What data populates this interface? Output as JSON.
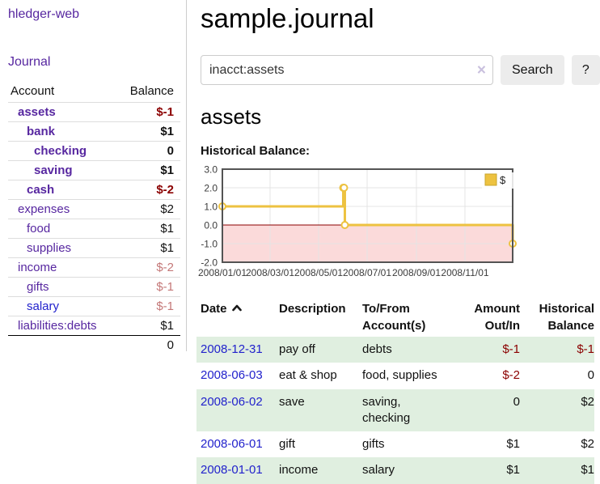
{
  "colors": {
    "link_purple": "#5727a0",
    "link_blue": "#2222cc",
    "negative": "#8b0000",
    "negative_muted": "#c47878",
    "row_highlight_green": "#e0efe0",
    "chart_line_yellow": "#edc240",
    "chart_negative_fill": "#fbdada",
    "chart_zero_line": "#8b0000",
    "chart_border": "#545454",
    "button_bg": "#ececec"
  },
  "app": {
    "brand": "hledger-web"
  },
  "sidebar": {
    "journal_link": "Journal",
    "accounts_table": {
      "headers": {
        "account": "Account",
        "balance": "Balance"
      },
      "rows": [
        {
          "account": "assets",
          "balance": "$-1"
        },
        {
          "account": "bank",
          "balance": "$1"
        },
        {
          "account": "checking",
          "balance": "0"
        },
        {
          "account": "saving",
          "balance": "$1"
        },
        {
          "account": "cash",
          "balance": "$-2"
        },
        {
          "account": "expenses",
          "balance": "$2"
        },
        {
          "account": "food",
          "balance": "$1"
        },
        {
          "account": "supplies",
          "balance": "$1"
        },
        {
          "account": "income",
          "balance": "$-2"
        },
        {
          "account": "gifts",
          "balance": "$-1"
        },
        {
          "account": "salary",
          "balance": "$-1"
        },
        {
          "account": "liabilities:debts",
          "balance": "$1"
        }
      ],
      "total": "0"
    }
  },
  "main": {
    "title": "sample.journal",
    "search": {
      "value": "inacct:assets",
      "clear_icon": "×",
      "button_label": "Search",
      "help_label": "?"
    },
    "account_heading": "assets",
    "section_heading": "Historical Balance:"
  },
  "chart_data": {
    "type": "line",
    "subtype": "step",
    "title": "Historical Balance:",
    "x_range": [
      "2008/01/01",
      "2008/12/31"
    ],
    "ylim": [
      -2,
      3
    ],
    "x_ticks": [
      "2008/01/01",
      "2008/03/01",
      "2008/05/01",
      "2008/07/01",
      "2008/09/01",
      "2008/11/01"
    ],
    "y_ticks": [
      "3.0",
      "2.0",
      "1.0",
      "0.0",
      "-1.0",
      "-2.0"
    ],
    "grid": true,
    "legend_position": "top-right",
    "negative_region_shaded": true,
    "series": [
      {
        "name": "$",
        "color": "#edc240",
        "points": [
          [
            "2008/01/01",
            1
          ],
          [
            "2008/06/01",
            2
          ],
          [
            "2008/06/02",
            2
          ],
          [
            "2008/06/03",
            0
          ],
          [
            "2008/12/31",
            -1
          ]
        ]
      }
    ]
  },
  "register": {
    "headers": {
      "date": "Date",
      "description": "Description",
      "tofrom": "To/From Account(s)",
      "amount": "Amount Out/In",
      "balance": "Historical Balance"
    },
    "rows": [
      {
        "date": "2008-12-31",
        "description": "pay off",
        "tofrom": "debts",
        "amount": "$-1",
        "balance": "$-1"
      },
      {
        "date": "2008-06-03",
        "description": "eat & shop",
        "tofrom": "food, supplies",
        "amount": "$-2",
        "balance": "0"
      },
      {
        "date": "2008-06-02",
        "description": "save",
        "tofrom": "saving, checking",
        "amount": "0",
        "balance": "$2"
      },
      {
        "date": "2008-06-01",
        "description": "gift",
        "tofrom": "gifts",
        "amount": "$1",
        "balance": "$2"
      },
      {
        "date": "2008-01-01",
        "description": "income",
        "tofrom": "salary",
        "amount": "$1",
        "balance": "$1"
      }
    ]
  }
}
